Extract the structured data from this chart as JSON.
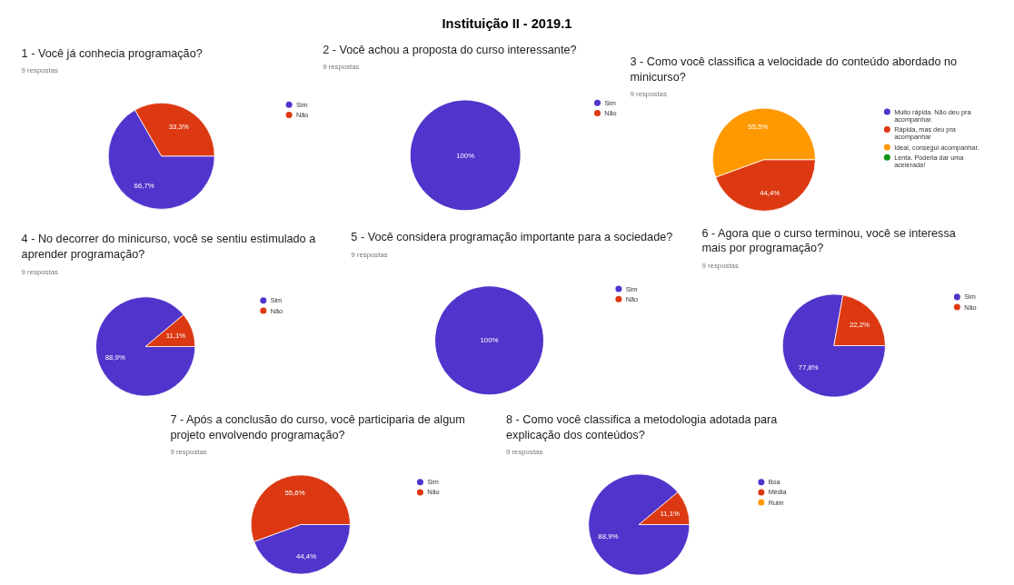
{
  "chart_data": [
    {
      "type": "other",
      "title": "Instituição II - 2019.1"
    },
    {
      "type": "pie",
      "title": "1 - Você já conhecia programação?",
      "subtitle": "9 respostas",
      "categories": [
        "Sim",
        "Não"
      ],
      "values": [
        66.7,
        33.3
      ],
      "colors": [
        "#5134cb",
        "#dc3912"
      ],
      "value_labels": [
        "66,7%",
        "33,3%"
      ],
      "legend": "right"
    },
    {
      "type": "pie",
      "title": "2 - Você achou a proposta do curso interessante?",
      "subtitle": "9 respostas",
      "categories": [
        "Sim",
        "Não"
      ],
      "values": [
        100,
        0
      ],
      "colors": [
        "#5134cb",
        "#dc3912"
      ],
      "value_labels": [
        "100%",
        null
      ],
      "legend": "right"
    },
    {
      "type": "pie",
      "title": "3 - Como você classifica a velocidade do conteúdo abordado no minicurso?",
      "subtitle": "9 respostas",
      "categories": [
        "Muito rápida. Não deu pra acompanhar.",
        "Rápida, mas deu pra acompanhar",
        "Ideal, consegui acompanhar.",
        "Lenta. Poderia dar uma acelerada!"
      ],
      "values": [
        0,
        44.4,
        55.5,
        0
      ],
      "colors": [
        "#5134cb",
        "#dc3912",
        "#ff9900",
        "#109618"
      ],
      "value_labels": [
        null,
        "44,4%",
        "55,5%",
        null
      ],
      "legend": "right"
    },
    {
      "type": "pie",
      "title": "4 - No decorrer do minicurso, você se sentiu estimulado a aprender programação?",
      "subtitle": "9 respostas",
      "categories": [
        "Sim",
        "Não"
      ],
      "values": [
        88.9,
        11.1
      ],
      "colors": [
        "#5134cb",
        "#dc3912"
      ],
      "value_labels": [
        "88,9%",
        "11,1%"
      ],
      "legend": "right"
    },
    {
      "type": "pie",
      "title": "5 - Você considera programação importante para a sociedade?",
      "subtitle": "9 respostas",
      "categories": [
        "Sim",
        "Não"
      ],
      "values": [
        100,
        0
      ],
      "colors": [
        "#5134cb",
        "#dc3912"
      ],
      "value_labels": [
        "100%",
        null
      ],
      "legend": "right"
    },
    {
      "type": "pie",
      "title": "6 - Agora que o curso terminou, você se interessa mais por programação?",
      "subtitle": "9 respostas",
      "categories": [
        "Sim",
        "Não"
      ],
      "values": [
        77.8,
        22.2
      ],
      "colors": [
        "#5134cb",
        "#dc3912"
      ],
      "value_labels": [
        "77,8%",
        "22,2%"
      ],
      "legend": "right"
    },
    {
      "type": "pie",
      "title": "7 - Após a conclusão do curso, você participaria de algum projeto envolvendo programação?",
      "subtitle": "9 respostas",
      "categories": [
        "Sim",
        "Não"
      ],
      "values": [
        44.4,
        55.6
      ],
      "colors": [
        "#5134cb",
        "#dc3912"
      ],
      "value_labels": [
        "44,4%",
        "55,6%"
      ],
      "legend": "right"
    },
    {
      "type": "pie",
      "title": "8 - Como você classifica a metodologia adotada para explicação dos conteúdos?",
      "subtitle": "9 respostas",
      "categories": [
        "Boa",
        "Média",
        "Ruim"
      ],
      "values": [
        88.9,
        11.1,
        0
      ],
      "colors": [
        "#5134cb",
        "#dc3912",
        "#ff9900"
      ],
      "value_labels": [
        "88,9%",
        "11,1%",
        null
      ],
      "legend": "right"
    }
  ]
}
